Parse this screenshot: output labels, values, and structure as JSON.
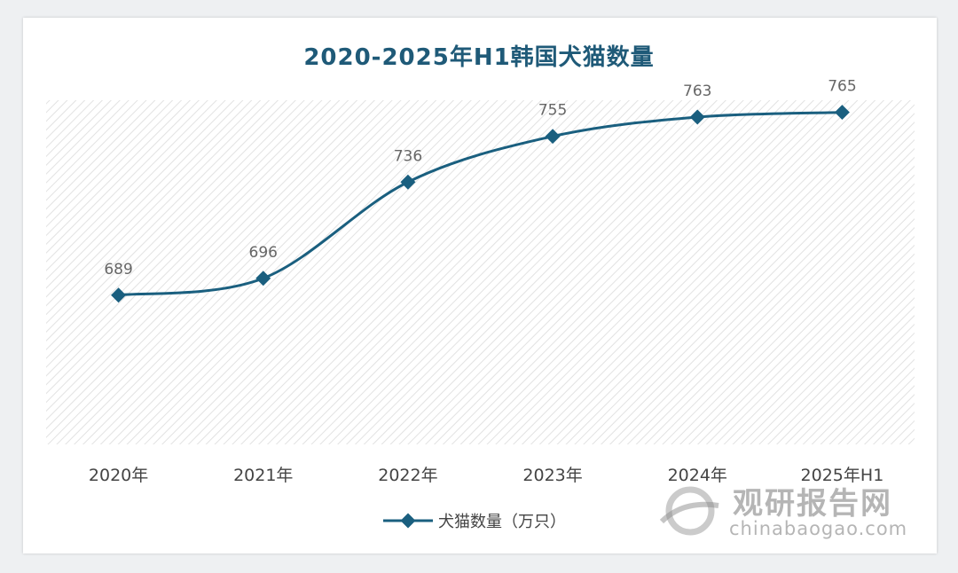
{
  "chart_data": {
    "type": "line",
    "title": "2020-2025年H1韩国犬猫数量",
    "categories": [
      "2020年",
      "2021年",
      "2022年",
      "2023年",
      "2024年",
      "2025年H1"
    ],
    "series": [
      {
        "name": "犬猫数量（万只）",
        "values": [
          689,
          696,
          736,
          755,
          763,
          765
        ],
        "color": "#1a5f7f"
      }
    ],
    "ylim": [
      627,
      770
    ],
    "grid": false,
    "legend": "bottom",
    "colors": {
      "title": "#1f5a78",
      "line": "#1a5f7f",
      "plot_bg": "hatched-light-gray"
    }
  },
  "watermark": {
    "cn": "观研报告网",
    "en": "chinabaogao.com"
  }
}
